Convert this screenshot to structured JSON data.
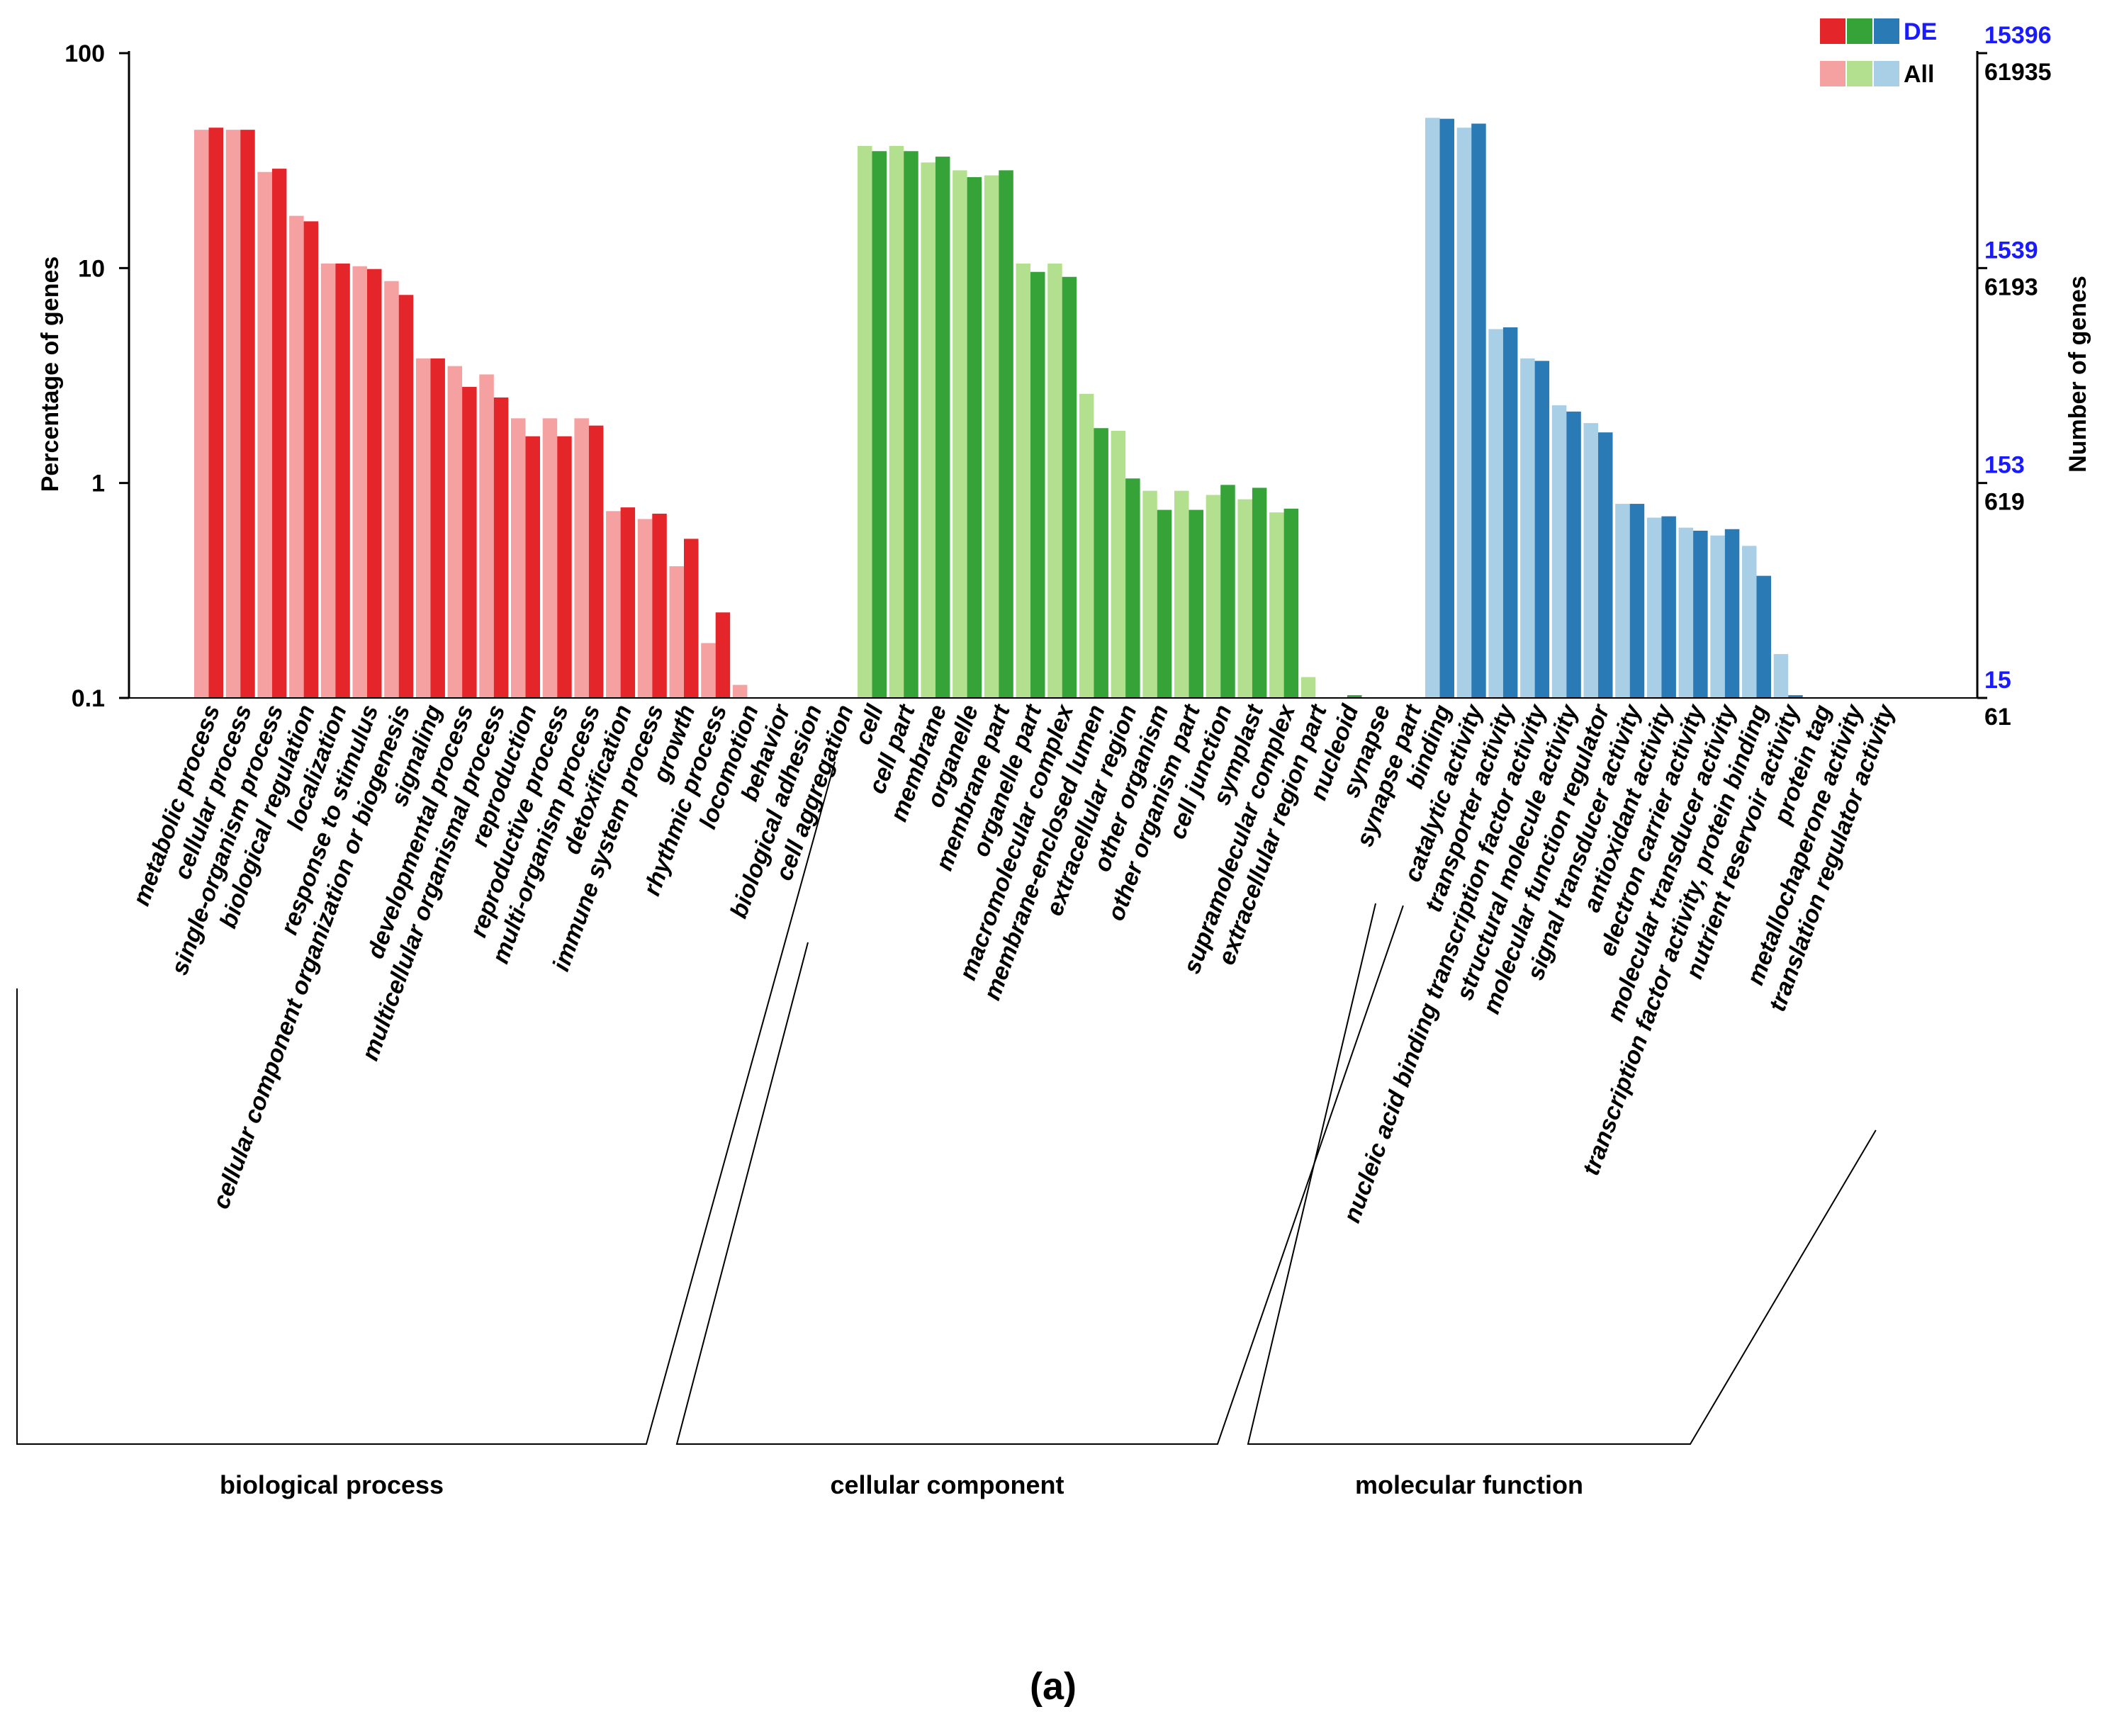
{
  "chart_data": {
    "type": "bar",
    "caption": "(a)",
    "ylabel_left": "Percentage of genes",
    "ylabel_right": "Number of genes",
    "y_scale": "log",
    "ylim": [
      0.1,
      100
    ],
    "left_ticks": [
      "100",
      "10",
      "1",
      "0.1"
    ],
    "left_tick_values": [
      100,
      10,
      1,
      0.1
    ],
    "right_ticks_de": [
      "15396",
      "1539",
      "153",
      "15"
    ],
    "right_ticks_all": [
      "61935",
      "6193",
      "619",
      "61"
    ],
    "legend": {
      "de": "DE",
      "all": "All"
    },
    "colors": {
      "biological_process": {
        "de": "#e4262b",
        "all": "#f6a1a1"
      },
      "cellular_component": {
        "de": "#36a339",
        "all": "#b3e08f"
      },
      "molecular_function": {
        "de": "#2a7ab6",
        "all": "#a9cfe6"
      },
      "de_numbers": "#1a1aff",
      "all_numbers": "#000000"
    },
    "groups": [
      {
        "key": "biological_process",
        "name": "biological process",
        "categories": [
          {
            "label": "metabolic process",
            "all": 44,
            "de": 45
          },
          {
            "label": "cellular process",
            "all": 44,
            "de": 44
          },
          {
            "label": "single-organism process",
            "all": 28,
            "de": 29
          },
          {
            "label": "biological regulation",
            "all": 17.5,
            "de": 16.5
          },
          {
            "label": "localization",
            "all": 10.5,
            "de": 10.5
          },
          {
            "label": "response to stimulus",
            "all": 10.2,
            "de": 9.9
          },
          {
            "label": "cellular component organization or biogenesis",
            "all": 8.7,
            "de": 7.5
          },
          {
            "label": "signaling",
            "all": 3.8,
            "de": 3.8
          },
          {
            "label": "developmental process",
            "all": 3.5,
            "de": 2.8
          },
          {
            "label": "multicellular organismal process",
            "all": 3.2,
            "de": 2.5
          },
          {
            "label": "reproduction",
            "all": 2.0,
            "de": 1.65
          },
          {
            "label": "reproductive process",
            "all": 2.0,
            "de": 1.65
          },
          {
            "label": "multi-organism process",
            "all": 2.0,
            "de": 1.85
          },
          {
            "label": "detoxification",
            "all": 0.74,
            "de": 0.77
          },
          {
            "label": "immune system process",
            "all": 0.68,
            "de": 0.72
          },
          {
            "label": "growth",
            "all": 0.41,
            "de": 0.55
          },
          {
            "label": "rhythmic process",
            "all": 0.18,
            "de": 0.25
          },
          {
            "label": "locomotion",
            "all": 0.115,
            "de": null
          },
          {
            "label": "behavior",
            "all": null,
            "de": null
          },
          {
            "label": "biological adhesion",
            "all": null,
            "de": null
          },
          {
            "label": "cell aggregation",
            "all": null,
            "de": null
          }
        ]
      },
      {
        "key": "cellular_component",
        "name": "cellular component",
        "categories": [
          {
            "label": "cell",
            "all": 37,
            "de": 35
          },
          {
            "label": "cell part",
            "all": 37,
            "de": 35
          },
          {
            "label": "membrane",
            "all": 31,
            "de": 33
          },
          {
            "label": "organelle",
            "all": 28.5,
            "de": 26.5
          },
          {
            "label": "membrane part",
            "all": 27,
            "de": 28.5
          },
          {
            "label": "organelle part",
            "all": 10.5,
            "de": 9.6
          },
          {
            "label": "macromolecular complex",
            "all": 10.5,
            "de": 9.1
          },
          {
            "label": "membrane-enclosed lumen",
            "all": 2.6,
            "de": 1.8
          },
          {
            "label": "extracellular region",
            "all": 1.75,
            "de": 1.05
          },
          {
            "label": "other organism",
            "all": 0.92,
            "de": 0.75
          },
          {
            "label": "other organism part",
            "all": 0.92,
            "de": 0.75
          },
          {
            "label": "cell junction",
            "all": 0.88,
            "de": 0.98
          },
          {
            "label": "symplast",
            "all": 0.84,
            "de": 0.95
          },
          {
            "label": "supramolecular complex",
            "all": 0.73,
            "de": 0.76
          },
          {
            "label": "extracellular region part",
            "all": 0.125,
            "de": null
          },
          {
            "label": "nucleoid",
            "all": null,
            "de": 0.103
          },
          {
            "label": "synapse",
            "all": null,
            "de": null
          },
          {
            "label": "synapse part",
            "all": null,
            "de": null
          }
        ]
      },
      {
        "key": "molecular_function",
        "name": "molecular function",
        "categories": [
          {
            "label": "binding",
            "all": 50,
            "de": 49.5
          },
          {
            "label": "catalytic activity",
            "all": 45,
            "de": 47
          },
          {
            "label": "transporter activity",
            "all": 5.2,
            "de": 5.3
          },
          {
            "label": "nucleic acid binding transcription factor activity",
            "all": 3.8,
            "de": 3.7
          },
          {
            "label": "structural molecule activity",
            "all": 2.3,
            "de": 2.15
          },
          {
            "label": "molecular function regulator",
            "all": 1.9,
            "de": 1.72
          },
          {
            "label": "signal transducer activity",
            "all": 0.8,
            "de": 0.8
          },
          {
            "label": "antioxidant activity",
            "all": 0.69,
            "de": 0.7
          },
          {
            "label": "electron carrier activity",
            "all": 0.62,
            "de": 0.6
          },
          {
            "label": "molecular transducer activity",
            "all": 0.57,
            "de": 0.61
          },
          {
            "label": "transcription factor activity, protein binding",
            "all": 0.51,
            "de": 0.37
          },
          {
            "label": "nutrient reservoir activity",
            "all": 0.16,
            "de": 0.103
          },
          {
            "label": "protein tag",
            "all": null,
            "de": null
          },
          {
            "label": "metallochaperone activity",
            "all": null,
            "de": null
          },
          {
            "label": "translation regulator activity",
            "all": null,
            "de": null
          }
        ]
      }
    ]
  }
}
